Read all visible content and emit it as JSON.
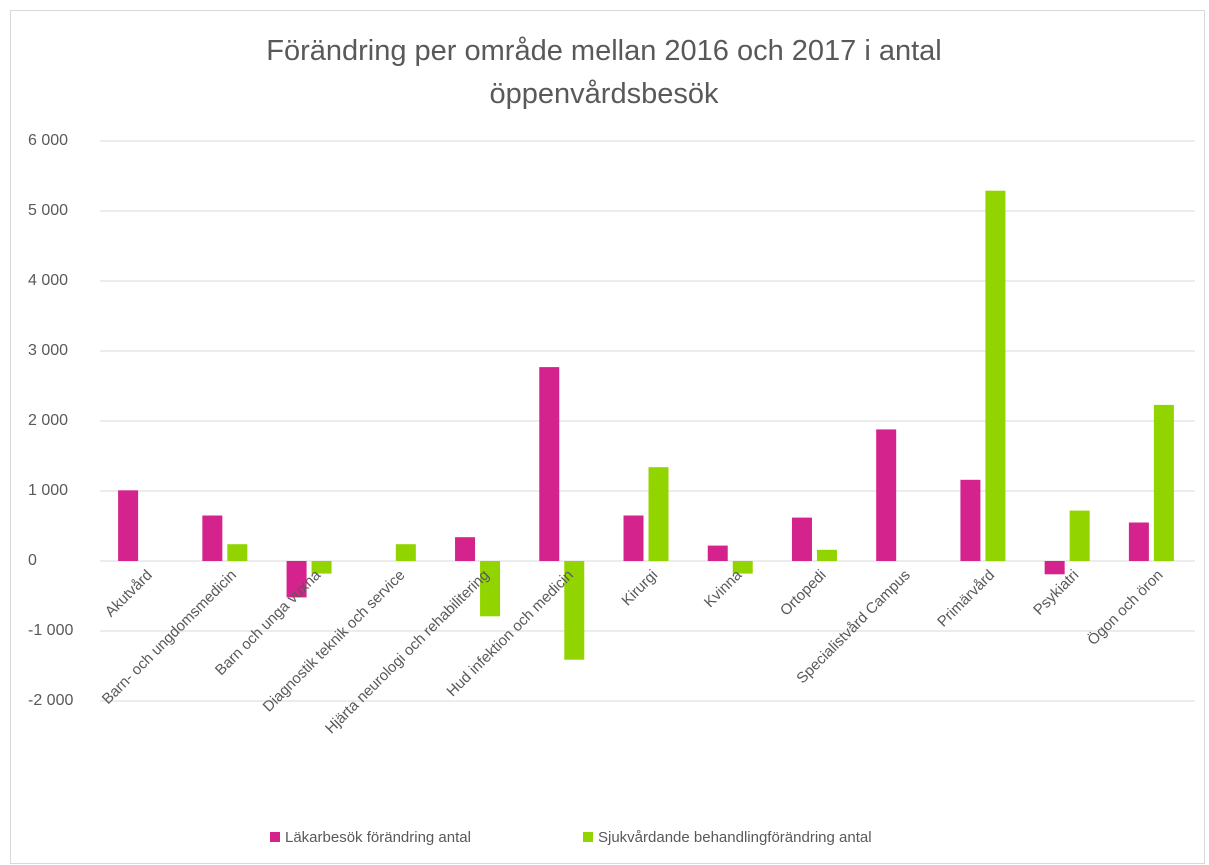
{
  "chart_data": {
    "type": "bar",
    "title": "Förändring per område mellan 2016 och 2017 i antal öppenvårdsbesök",
    "categories": [
      "Akutvård",
      "Barn- och ungdomsmedicin",
      "Barn och unga vuxna",
      "Diagnostik teknik och service",
      "Hjärta neurologi och rehabilitering",
      "Hud infektion och medicin",
      "Kirurgi",
      "Kvinna",
      "Ortopedi",
      "Specialistvård Campus",
      "Primärvård",
      "Psykiatri",
      "Ögon och öron"
    ],
    "series": [
      {
        "name": "Läkarbesök förändring antal",
        "color": "#d4238d",
        "values": [
          1010,
          650,
          -520,
          0,
          340,
          2770,
          650,
          220,
          620,
          1880,
          1160,
          -190,
          550
        ]
      },
      {
        "name": "Sjukvårdande behandlingförändring antal",
        "color": "#92d400",
        "values": [
          0,
          240,
          -180,
          240,
          -790,
          -1410,
          1340,
          -180,
          160,
          0,
          5290,
          720,
          2230
        ]
      }
    ],
    "ylim": [
      -2000,
      6000
    ],
    "yticks": [
      {
        "value": -2000,
        "label": "-2 000"
      },
      {
        "value": -1000,
        "label": "-1 000"
      },
      0,
      {
        "value": 1000,
        "label": "1 000"
      },
      {
        "value": 2000,
        "label": "2 000"
      },
      {
        "value": 3000,
        "label": "3 000"
      },
      {
        "value": 4000,
        "label": "4 000"
      },
      {
        "value": 5000,
        "label": "5 000"
      },
      {
        "value": 6000,
        "label": "6 000"
      }
    ],
    "grid": true,
    "legend": "bottom"
  }
}
